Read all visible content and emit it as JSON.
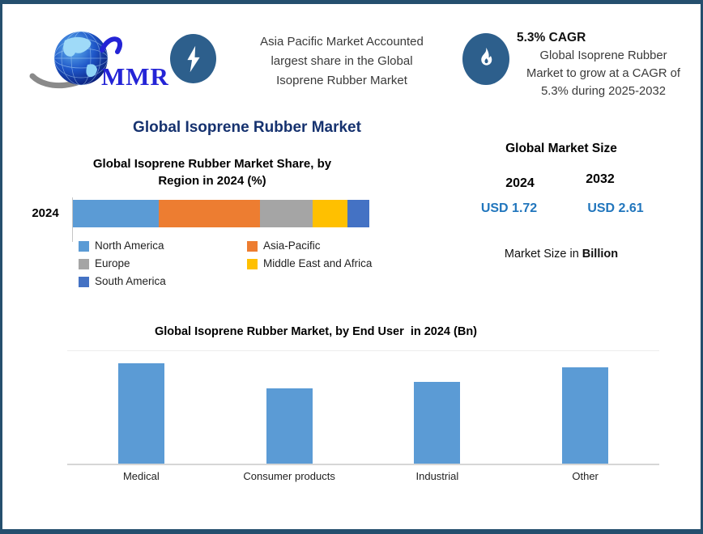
{
  "colors": {
    "frame_border": "#254F6E",
    "icon_circle": "#2D5F8C",
    "title_navy": "#16326F",
    "value_blue": "#2176BD",
    "bar_blue": "#5B9BD5"
  },
  "header": {
    "logo": {
      "text": "MMR",
      "icon": "globe-swoosh-logo"
    },
    "left_callout": {
      "icon": "lightning-icon",
      "lines": [
        "Asia Pacific Market Accounted",
        "largest share in the Global",
        "Isoprene Rubber Market"
      ]
    },
    "right_callout": {
      "icon": "flame-icon",
      "heading": "5.3% CAGR",
      "lines": [
        "Global Isoprene Rubber",
        "Market to grow at a CAGR of",
        "5.3% during 2025-2032"
      ]
    }
  },
  "main_title": "Global Isoprene Rubber Market",
  "market_size": {
    "title": "Global Market Size",
    "columns": [
      {
        "year": "2024",
        "value": "USD 1.72"
      },
      {
        "year": "2032",
        "value": "USD 2.61"
      }
    ],
    "note_regular": "Market Size in ",
    "note_bold": "Billion"
  },
  "chart_data": [
    {
      "type": "bar",
      "subtype": "horizontal-stacked",
      "title": "Global Isoprene Rubber Market Share, by Region in 2024 (%)",
      "title_lines": [
        "Global Isoprene Rubber Market Share, by",
        "Region in 2024 (%)"
      ],
      "categories": [
        "2024"
      ],
      "series": [
        {
          "name": "North America",
          "values": [
            29
          ],
          "color": "#5B9BD5"
        },
        {
          "name": "Asia-Pacific",
          "values": [
            34
          ],
          "color": "#ED7D31"
        },
        {
          "name": "Europe",
          "values": [
            18
          ],
          "color": "#A5A5A5"
        },
        {
          "name": "Middle East and Africa",
          "values": [
            11.5
          ],
          "color": "#FFC000"
        },
        {
          "name": "South America",
          "values": [
            7.5
          ],
          "color": "#4472C4"
        }
      ],
      "xlim": [
        0,
        100
      ],
      "unit": "%",
      "legend_position": "bottom-left",
      "grid": "off"
    },
    {
      "type": "bar",
      "title": "Global Isoprene Rubber Market, by End User  in 2024 (Bn)",
      "categories": [
        "Medical",
        "Consumer products",
        "Industrial",
        "Other"
      ],
      "values": [
        0.49,
        0.37,
        0.4,
        0.47
      ],
      "ylim": [
        0,
        0.55
      ],
      "unit": "Bn",
      "bar_color": "#5B9BD5",
      "grid": "baseline only, no y-axis labels"
    }
  ]
}
